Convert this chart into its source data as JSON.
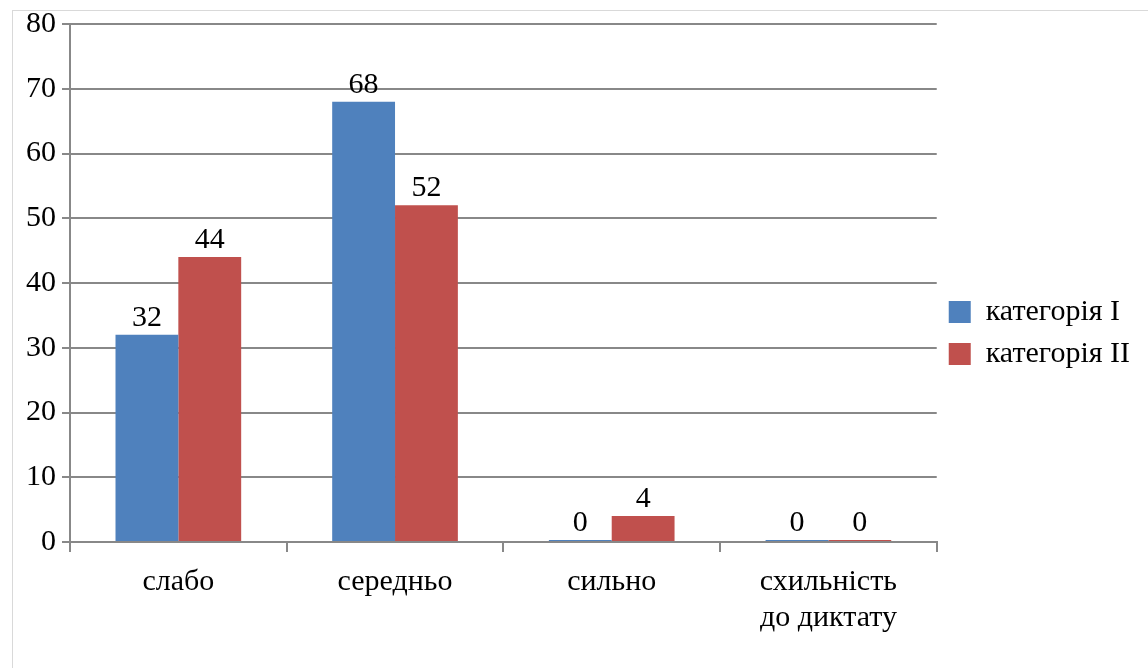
{
  "chart_data": {
    "type": "bar",
    "categories": [
      "слабо",
      "середньо",
      "сильно",
      "схильність до диктату"
    ],
    "series": [
      {
        "name": "категорія I",
        "color": "#4f81bd",
        "values": [
          32,
          68,
          0,
          0
        ]
      },
      {
        "name": "категорія II",
        "color": "#c0504d",
        "values": [
          44,
          52,
          4,
          0
        ]
      }
    ],
    "ylim": [
      0,
      80
    ],
    "yticks": [
      0,
      10,
      20,
      30,
      40,
      50,
      60,
      70,
      80
    ],
    "grid": "y",
    "legend": "right",
    "data_labels": true
  }
}
